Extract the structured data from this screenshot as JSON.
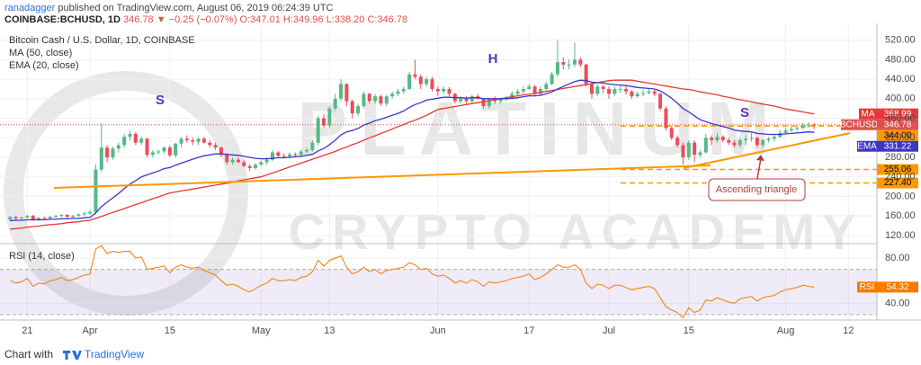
{
  "header": {
    "author": "ranadagger",
    "published": " published on TradingView.com, August 06, 2019 06:24:39 UTC",
    "symbol": "COINBASE:BCHUSD, 1D",
    "quote": " 346.78 ▼ −0.25 (−0.07%) O:347.01 H:349.96 L:338.20 C:346.78"
  },
  "footer": {
    "prefix": "Chart with",
    "brand": "TradingView"
  },
  "watermark": [
    "PLATINUM",
    "CRYPTO ACADEMY"
  ],
  "annotations": [
    "S",
    "H",
    "S",
    "Ascending triangle"
  ],
  "chart_data": {
    "type": "candlestick",
    "title": "Bitcoin Cash / U.S. Dollar, 1D, COINBASE",
    "symbol": "BCHUSD",
    "close_label": "346.78",
    "up_color": "#53b987",
    "down_color": "#eb4d5c",
    "tag_color": "#e0504e",
    "x": [
      "2019-03-18",
      "2019-03-19",
      "2019-03-20",
      "2019-03-21",
      "2019-03-22",
      "2019-03-23",
      "2019-03-24",
      "2019-03-25",
      "2019-03-26",
      "2019-03-27",
      "2019-03-28",
      "2019-03-29",
      "2019-03-30",
      "2019-03-31",
      "2019-04-01",
      "2019-04-02",
      "2019-04-03",
      "2019-04-04",
      "2019-04-05",
      "2019-04-06",
      "2019-04-07",
      "2019-04-08",
      "2019-04-09",
      "2019-04-10",
      "2019-04-11",
      "2019-04-12",
      "2019-04-13",
      "2019-04-14",
      "2019-04-15",
      "2019-04-16",
      "2019-04-17",
      "2019-04-18",
      "2019-04-19",
      "2019-04-20",
      "2019-04-21",
      "2019-04-22",
      "2019-04-23",
      "2019-04-24",
      "2019-04-25",
      "2019-04-26",
      "2019-04-27",
      "2019-04-28",
      "2019-04-29",
      "2019-04-30",
      "2019-05-01",
      "2019-05-02",
      "2019-05-03",
      "2019-05-04",
      "2019-05-05",
      "2019-05-06",
      "2019-05-07",
      "2019-05-08",
      "2019-05-09",
      "2019-05-10",
      "2019-05-11",
      "2019-05-12",
      "2019-05-13",
      "2019-05-14",
      "2019-05-15",
      "2019-05-16",
      "2019-05-17",
      "2019-05-18",
      "2019-05-19",
      "2019-05-20",
      "2019-05-21",
      "2019-05-22",
      "2019-05-23",
      "2019-05-24",
      "2019-05-25",
      "2019-05-26",
      "2019-05-27",
      "2019-05-28",
      "2019-05-29",
      "2019-05-30",
      "2019-05-31",
      "2019-06-01",
      "2019-06-02",
      "2019-06-03",
      "2019-06-04",
      "2019-06-05",
      "2019-06-06",
      "2019-06-07",
      "2019-06-08",
      "2019-06-09",
      "2019-06-10",
      "2019-06-11",
      "2019-06-12",
      "2019-06-13",
      "2019-06-14",
      "2019-06-15",
      "2019-06-16",
      "2019-06-17",
      "2019-06-18",
      "2019-06-19",
      "2019-06-20",
      "2019-06-21",
      "2019-06-22",
      "2019-06-23",
      "2019-06-24",
      "2019-06-25",
      "2019-06-26",
      "2019-06-27",
      "2019-06-28",
      "2019-06-29",
      "2019-06-30",
      "2019-07-01",
      "2019-07-02",
      "2019-07-03",
      "2019-07-04",
      "2019-07-05",
      "2019-07-06",
      "2019-07-07",
      "2019-07-08",
      "2019-07-09",
      "2019-07-10",
      "2019-07-11",
      "2019-07-12",
      "2019-07-13",
      "2019-07-14",
      "2019-07-15",
      "2019-07-16",
      "2019-07-17",
      "2019-07-18",
      "2019-07-19",
      "2019-07-20",
      "2019-07-21",
      "2019-07-22",
      "2019-07-23",
      "2019-07-24",
      "2019-07-25",
      "2019-07-26",
      "2019-07-27",
      "2019-07-28",
      "2019-07-29",
      "2019-07-30",
      "2019-07-31",
      "2019-08-01",
      "2019-08-02",
      "2019-08-03",
      "2019-08-04",
      "2019-08-05",
      "2019-08-06"
    ],
    "open": [
      152,
      158,
      155,
      157,
      160,
      152,
      156,
      155,
      158,
      160,
      162,
      158,
      160,
      163,
      165,
      168,
      255,
      300,
      280,
      298,
      305,
      322,
      328,
      310,
      318,
      285,
      290,
      292,
      300,
      284,
      308,
      318,
      315,
      312,
      318,
      310,
      305,
      300,
      285,
      270,
      275,
      270,
      262,
      258,
      265,
      270,
      275,
      290,
      283,
      282,
      286,
      285,
      292,
      295,
      310,
      360,
      345,
      380,
      400,
      430,
      395,
      370,
      385,
      410,
      395,
      405,
      390,
      405,
      410,
      415,
      420,
      450,
      445,
      430,
      440,
      420,
      415,
      420,
      410,
      395,
      400,
      395,
      405,
      400,
      385,
      400,
      395,
      400,
      402,
      410,
      415,
      420,
      425,
      410,
      420,
      430,
      450,
      475,
      470,
      470,
      480,
      470,
      430,
      410,
      425,
      420,
      410,
      420,
      420,
      415,
      405,
      410,
      412,
      415,
      410,
      380,
      340,
      320,
      305,
      280,
      310,
      285,
      290,
      320,
      315,
      322,
      315,
      310,
      305,
      315,
      318,
      320,
      305,
      315,
      318,
      322,
      330,
      335,
      338,
      340,
      345,
      347.01
    ],
    "high": [
      160,
      161,
      159,
      162,
      162,
      157,
      158,
      160,
      162,
      164,
      164,
      162,
      165,
      168,
      172,
      265,
      350,
      305,
      302,
      310,
      328,
      335,
      332,
      322,
      320,
      295,
      296,
      302,
      304,
      310,
      322,
      325,
      320,
      320,
      322,
      315,
      310,
      302,
      288,
      280,
      280,
      275,
      266,
      268,
      274,
      280,
      295,
      293,
      288,
      290,
      290,
      296,
      300,
      315,
      365,
      368,
      385,
      410,
      440,
      432,
      398,
      390,
      415,
      412,
      410,
      408,
      408,
      415,
      420,
      425,
      455,
      480,
      450,
      445,
      445,
      425,
      425,
      424,
      412,
      405,
      405,
      408,
      410,
      402,
      402,
      405,
      402,
      405,
      415,
      420,
      425,
      430,
      428,
      425,
      435,
      455,
      520,
      485,
      480,
      515,
      485,
      472,
      435,
      430,
      428,
      425,
      425,
      428,
      425,
      418,
      415,
      418,
      420,
      418,
      412,
      385,
      345,
      325,
      310,
      315,
      315,
      295,
      328,
      325,
      330,
      325,
      320,
      315,
      320,
      325,
      330,
      322,
      318,
      322,
      328,
      336,
      340,
      345,
      345,
      350,
      352,
      349.96
    ],
    "low": [
      150,
      152,
      153,
      155,
      150,
      150,
      153,
      152,
      155,
      157,
      156,
      156,
      158,
      160,
      162,
      163,
      250,
      270,
      275,
      290,
      300,
      315,
      305,
      305,
      280,
      280,
      285,
      288,
      280,
      280,
      300,
      310,
      305,
      305,
      308,
      300,
      295,
      280,
      265,
      265,
      268,
      260,
      252,
      255,
      262,
      265,
      272,
      280,
      278,
      278,
      280,
      282,
      288,
      292,
      305,
      340,
      340,
      375,
      395,
      385,
      360,
      365,
      380,
      390,
      390,
      385,
      385,
      400,
      405,
      410,
      418,
      440,
      420,
      425,
      415,
      405,
      410,
      405,
      390,
      390,
      390,
      390,
      398,
      380,
      380,
      390,
      390,
      395,
      398,
      405,
      410,
      418,
      405,
      405,
      415,
      428,
      445,
      460,
      460,
      465,
      465,
      425,
      400,
      405,
      412,
      400,
      405,
      412,
      408,
      400,
      402,
      405,
      408,
      405,
      375,
      335,
      315,
      300,
      265,
      275,
      270,
      280,
      288,
      305,
      310,
      310,
      305,
      300,
      300,
      305,
      312,
      300,
      300,
      310,
      312,
      320,
      330,
      332,
      335,
      338,
      340,
      338.2
    ],
    "close": [
      158,
      155,
      157,
      160,
      152,
      156,
      155,
      158,
      160,
      162,
      158,
      160,
      163,
      165,
      168,
      255,
      300,
      280,
      298,
      305,
      322,
      328,
      310,
      318,
      285,
      290,
      292,
      300,
      284,
      308,
      318,
      315,
      312,
      318,
      310,
      305,
      300,
      285,
      270,
      275,
      270,
      262,
      258,
      265,
      270,
      275,
      290,
      283,
      282,
      286,
      285,
      292,
      295,
      310,
      360,
      345,
      380,
      400,
      430,
      395,
      370,
      385,
      410,
      395,
      405,
      390,
      405,
      410,
      415,
      420,
      450,
      445,
      430,
      440,
      420,
      415,
      420,
      410,
      395,
      400,
      395,
      405,
      400,
      385,
      400,
      395,
      400,
      402,
      410,
      415,
      420,
      425,
      410,
      420,
      430,
      450,
      475,
      470,
      470,
      480,
      470,
      430,
      410,
      425,
      420,
      410,
      420,
      420,
      415,
      405,
      410,
      412,
      415,
      410,
      380,
      340,
      320,
      305,
      280,
      310,
      285,
      290,
      320,
      315,
      322,
      315,
      310,
      305,
      315,
      318,
      320,
      305,
      315,
      318,
      322,
      330,
      335,
      338,
      340,
      345,
      347.03,
      346.78
    ],
    "series": [
      {
        "name": "MA",
        "legend": "MA (50, close)",
        "color": "#e53935",
        "value_label": "368.99",
        "values": [
          133,
          134,
          135,
          137,
          138,
          139,
          141,
          142,
          143,
          144,
          146,
          147,
          148,
          150,
          151,
          155,
          159,
          163,
          167,
          171,
          175,
          179,
          183,
          187,
          191,
          195,
          199,
          203,
          207,
          209,
          211,
          213,
          215,
          217,
          219,
          221,
          223,
          225,
          227,
          229,
          232,
          234,
          236,
          238,
          240,
          244,
          248,
          252,
          256,
          260,
          264,
          268,
          272,
          276,
          280,
          284,
          288,
          292,
          297,
          301,
          306,
          310,
          315,
          320,
          324,
          329,
          333,
          338,
          343,
          347,
          352,
          356,
          361,
          366,
          372,
          378,
          380,
          382,
          384,
          386,
          388,
          390,
          392,
          394,
          396,
          398,
          400,
          402,
          404,
          406,
          408,
          409,
          411,
          413,
          415,
          417,
          419,
          421,
          423,
          425,
          427,
          429,
          431,
          433,
          435,
          437,
          438,
          438,
          438,
          438,
          436,
          434,
          432,
          430,
          428,
          426,
          424,
          422,
          420,
          419,
          417,
          414,
          412,
          410,
          408,
          405,
          403,
          400,
          398,
          396,
          394,
          391,
          389,
          387,
          385,
          382,
          379,
          377,
          375,
          373,
          371,
          368.99
        ]
      },
      {
        "name": "EMA",
        "legend": "EMA (20, close)",
        "color": "#3d36c4",
        "value_label": "331.22",
        "values": [
          150,
          151,
          151,
          152,
          152,
          152,
          152,
          153,
          153,
          154,
          154,
          155,
          155,
          156,
          157,
          166,
          179,
          188,
          197,
          206,
          216,
          225,
          232,
          240,
          244,
          248,
          252,
          257,
          259,
          264,
          268,
          272,
          276,
          280,
          283,
          285,
          287,
          287,
          286,
          285,
          284,
          282,
          280,
          278,
          277,
          277,
          278,
          279,
          279,
          280,
          281,
          282,
          284,
          286,
          293,
          298,
          306,
          315,
          326,
          332,
          335,
          339,
          346,
          350,
          355,
          358,
          362,
          366,
          370,
          375,
          382,
          388,
          392,
          397,
          399,
          401,
          403,
          403,
          402,
          402,
          401,
          402,
          402,
          400,
          400,
          400,
          400,
          400,
          401,
          402,
          404,
          406,
          406,
          407,
          410,
          414,
          420,
          425,
          430,
          435,
          438,
          437,
          434,
          433,
          432,
          430,
          429,
          428,
          427,
          425,
          423,
          422,
          421,
          420,
          416,
          409,
          401,
          391,
          380,
          373,
          365,
          357,
          353,
          349,
          346,
          343,
          340,
          336,
          334,
          333,
          332,
          329,
          328,
          327,
          327,
          327,
          328,
          329,
          330,
          331,
          332,
          331.22
        ]
      }
    ],
    "levels": [
      {
        "value": 344,
        "label": "344.00"
      },
      {
        "value": 255.06,
        "label": "255.06"
      },
      {
        "value": 227.4,
        "label": "227.40"
      }
    ],
    "level_color": "#ff9800",
    "xlim": [
      "2019-03-17",
      "2019-08-17"
    ],
    "xticks": [
      {
        "value": "2019-03-21",
        "label": "21"
      },
      {
        "value": "2019-04-01",
        "label": "Apr"
      },
      {
        "value": "2019-04-15",
        "label": "15"
      },
      {
        "value": "2019-05-01",
        "label": "May"
      },
      {
        "value": "2019-05-13",
        "label": "13"
      },
      {
        "value": "2019-06-01",
        "label": "Jun"
      },
      {
        "value": "2019-06-17",
        "label": "17"
      },
      {
        "value": "2019-07-01",
        "label": "Jul"
      },
      {
        "value": "2019-07-15",
        "label": "15"
      },
      {
        "value": "2019-08-01",
        "label": "Aug"
      },
      {
        "value": "2019-08-12",
        "label": "12"
      }
    ],
    "ylim": [
      105,
      547
    ],
    "yticks": [
      {
        "value": 120,
        "label": "120.00"
      },
      {
        "value": 160,
        "label": "160.00"
      },
      {
        "value": 200,
        "label": "200.00"
      },
      {
        "value": 240,
        "label": "240.00"
      },
      {
        "value": 280,
        "label": "280.00"
      },
      {
        "value": 320,
        "label": "320.00"
      },
      {
        "value": 360,
        "label": "360.00"
      },
      {
        "value": 400,
        "label": "400.00"
      },
      {
        "value": 440,
        "label": "440.00"
      },
      {
        "value": 480,
        "label": "480.00"
      },
      {
        "value": 520,
        "label": "520.00"
      }
    ],
    "grid": true,
    "rsi": {
      "name": "RSI",
      "legend": "RSI (14, close)",
      "color": "#f57c00",
      "band": [
        30,
        70
      ],
      "value_label": "54.32",
      "ylim": [
        26,
        92
      ],
      "yticks": [
        {
          "value": 40,
          "label": "40.00"
        },
        {
          "value": 80,
          "label": "80.00"
        }
      ],
      "values": [
        60,
        58,
        59,
        62,
        55,
        58,
        57,
        60,
        61,
        63,
        60,
        61,
        63,
        65,
        66,
        88,
        91,
        84,
        86,
        85,
        86,
        86,
        80,
        81,
        70,
        71,
        72,
        73,
        67,
        72,
        74,
        72,
        71,
        72,
        69,
        67,
        65,
        60,
        56,
        57,
        55,
        52,
        50,
        53,
        56,
        58,
        62,
        60,
        60,
        61,
        60,
        63,
        64,
        68,
        78,
        73,
        78,
        80,
        82,
        72,
        66,
        68,
        72,
        68,
        70,
        66,
        69,
        70,
        71,
        72,
        76,
        74,
        70,
        71,
        66,
        64,
        65,
        62,
        58,
        60,
        58,
        61,
        59,
        55,
        59,
        58,
        59,
        60,
        62,
        63,
        64,
        66,
        61,
        63,
        66,
        70,
        74,
        72,
        72,
        74,
        70,
        58,
        53,
        57,
        56,
        53,
        56,
        56,
        54,
        52,
        53,
        54,
        55,
        53,
        45,
        37,
        34,
        32,
        27,
        36,
        32,
        34,
        43,
        42,
        45,
        43,
        41,
        40,
        44,
        45,
        46,
        42,
        45,
        46,
        47,
        50,
        52,
        53,
        54,
        56,
        55,
        54.32
      ]
    }
  }
}
